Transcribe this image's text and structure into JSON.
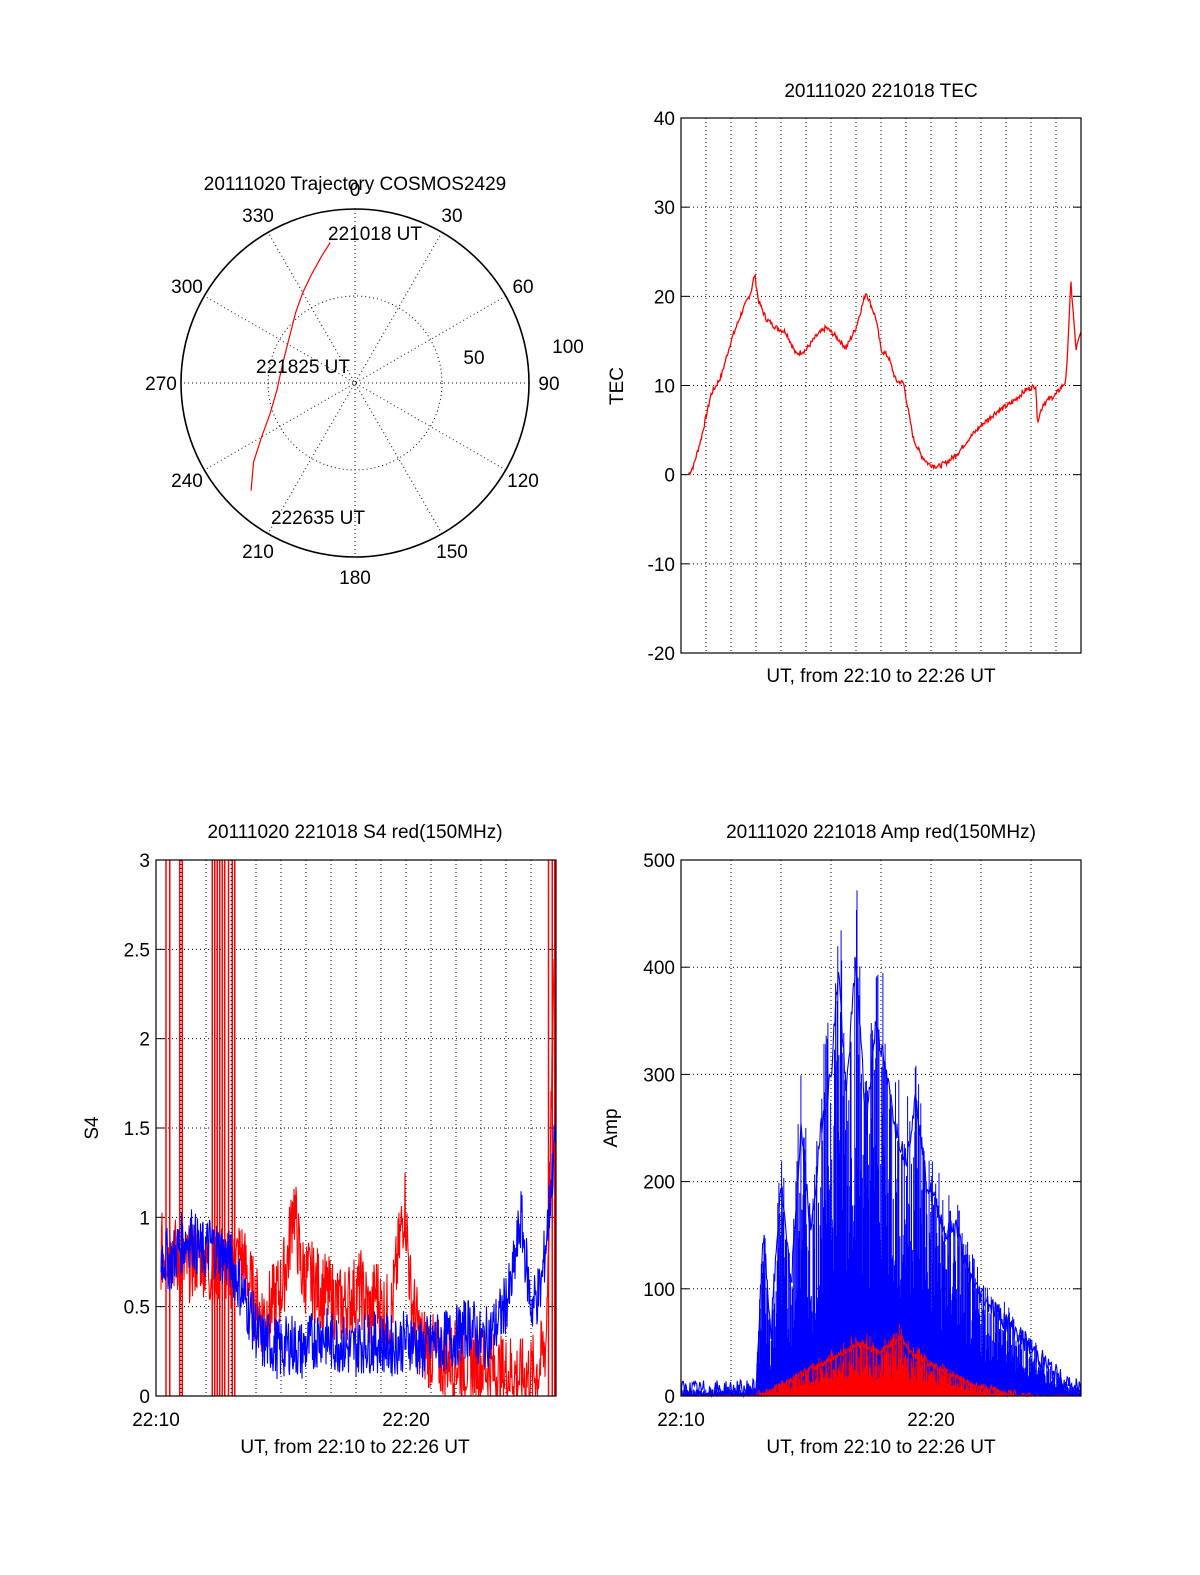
{
  "chart_data": [
    {
      "type": "polar-trajectory",
      "title": "20111020 Trajectory COSMOS2429",
      "angle_labels": [
        "0",
        "30",
        "60",
        "90",
        "120",
        "150",
        "180",
        "210",
        "240",
        "270",
        "300",
        "330"
      ],
      "radius_labels": [
        "50",
        "100"
      ],
      "radius_label_values": [
        50,
        100
      ],
      "radius_max": 100,
      "series": [
        {
          "color": "#ff0000",
          "azimuth_deg": [
            350,
            345,
            338,
            330,
            320,
            305,
            285,
            265,
            250,
            240,
            232,
            224
          ],
          "radius": [
            82,
            75,
            67,
            60,
            53,
            46,
            43,
            45,
            52,
            62,
            74,
            86
          ]
        }
      ],
      "annotations": [
        {
          "text": "221018 UT",
          "azimuth_deg": 359,
          "radius": 86
        },
        {
          "text": "221825 UT",
          "azimuth_deg": 280,
          "radius": 0
        },
        {
          "text": "222635 UT",
          "azimuth_deg": 206,
          "radius": 85
        }
      ]
    },
    {
      "type": "line",
      "title": "20111020 221018 TEC",
      "xlabel": "UT, from 22:10 to 22:26 UT",
      "ylabel": "TEC",
      "xlim": [
        0,
        16
      ],
      "ylim": [
        -20,
        40
      ],
      "yticks": [
        -20,
        -10,
        0,
        10,
        20,
        30,
        40
      ],
      "xtick_labels": [],
      "grid": true,
      "series": [
        {
          "color": "#ff0000",
          "x": [
            0.3,
            0.5,
            0.8,
            1.2,
            1.6,
            2.0,
            2.4,
            2.8,
            2.95,
            3.1,
            3.4,
            3.8,
            4.2,
            4.6,
            5.0,
            5.4,
            5.8,
            6.2,
            6.6,
            7.0,
            7.4,
            7.8,
            8.0,
            8.3,
            8.6,
            8.9,
            9.1,
            9.3,
            9.6,
            9.9,
            10.3,
            10.7,
            11.1,
            11.5,
            12.0,
            12.6,
            13.2,
            13.8,
            14.2,
            14.25,
            14.5,
            15.0,
            15.4,
            15.6,
            15.8,
            16.0
          ],
          "y": [
            0,
            1,
            4,
            9,
            11,
            15,
            18,
            20.5,
            22.5,
            19.5,
            17.5,
            16.5,
            16,
            13.5,
            14,
            15.5,
            16.5,
            15.5,
            14.2,
            16.5,
            20.5,
            17.5,
            14,
            13.2,
            10.5,
            10.3,
            7,
            4,
            2.2,
            1.2,
            0.9,
            1.5,
            2.5,
            4,
            5.5,
            7,
            8,
            9.5,
            10,
            6,
            8,
            9,
            10.5,
            21.5,
            14,
            16
          ]
        }
      ]
    },
    {
      "type": "line",
      "title": "20111020 221018 S4 red(150MHz)",
      "xlabel": "UT, from 22:10 to 22:26 UT",
      "ylabel": "S4",
      "xlim": [
        0,
        16
      ],
      "ylim": [
        0,
        3
      ],
      "yticks": [
        0,
        0.5,
        1,
        1.5,
        2,
        2.5,
        3
      ],
      "ytick_labels": [
        "0",
        "0.5",
        "1",
        "1.5",
        "2",
        "2.5",
        "3"
      ],
      "xtick_labels": [
        "22:10",
        "22:20"
      ],
      "xtick_values": [
        0,
        10
      ],
      "grid": true,
      "series": [
        {
          "color": "#ff0000",
          "x": [
            0.2,
            0.6,
            1.0,
            1.4,
            1.8,
            2.2,
            2.6,
            3.0,
            3.4,
            3.8,
            4.2,
            4.6,
            5.0,
            5.3,
            5.5,
            5.8,
            6.2,
            6.6,
            7.0,
            7.4,
            7.8,
            8.2,
            8.6,
            8.8,
            9.0,
            9.4,
            9.7,
            9.95,
            10.2,
            10.6,
            11.0,
            11.4,
            11.8,
            12.2,
            12.6,
            13.0,
            13.4,
            13.8,
            14.2,
            14.6,
            15.0,
            15.3,
            15.6,
            15.8,
            16.0
          ],
          "y": [
            0.8,
            0.85,
            0.7,
            0.75,
            0.8,
            0.7,
            0.75,
            0.7,
            0.8,
            0.6,
            0.45,
            0.5,
            0.6,
            0.8,
            1.1,
            0.7,
            0.65,
            0.6,
            0.55,
            0.5,
            0.55,
            0.6,
            0.45,
            0.6,
            0.5,
            0.45,
            0.8,
            1.1,
            0.55,
            0.3,
            0.25,
            0.2,
            0.22,
            0.18,
            0.2,
            0.18,
            0.15,
            0.12,
            0.14,
            0.1,
            0.12,
            0.15,
            0.3,
            1.5,
            2.8
          ]
        },
        {
          "color": "#0000ff",
          "x": [
            0.2,
            0.6,
            1.0,
            1.4,
            1.8,
            2.2,
            2.6,
            3.0,
            3.4,
            3.8,
            4.2,
            4.6,
            5.0,
            5.4,
            5.8,
            6.2,
            6.6,
            7.0,
            7.4,
            7.8,
            8.2,
            8.6,
            9.0,
            9.4,
            9.8,
            10.2,
            10.6,
            11.0,
            11.4,
            11.8,
            12.2,
            12.6,
            13.0,
            13.4,
            13.8,
            14.2,
            14.6,
            15.0,
            15.4,
            15.7,
            16.0
          ],
          "y": [
            0.8,
            0.75,
            0.85,
            0.9,
            0.8,
            0.85,
            0.8,
            0.75,
            0.6,
            0.45,
            0.3,
            0.3,
            0.25,
            0.3,
            0.25,
            0.3,
            0.35,
            0.3,
            0.3,
            0.25,
            0.3,
            0.3,
            0.3,
            0.28,
            0.3,
            0.32,
            0.25,
            0.3,
            0.3,
            0.32,
            0.35,
            0.4,
            0.3,
            0.35,
            0.45,
            0.6,
            1.0,
            0.5,
            0.6,
            1.0,
            1.5
          ]
        }
      ]
    },
    {
      "type": "line",
      "title": "20111020 221018 Amp red(150MHz)",
      "xlabel": "UT, from 22:10 to 22:26 UT",
      "ylabel": "Amp",
      "xlim": [
        0,
        16
      ],
      "ylim": [
        0,
        500
      ],
      "yticks": [
        0,
        100,
        200,
        300,
        400,
        500
      ],
      "xtick_labels": [
        "22:10",
        "22:20"
      ],
      "xtick_values": [
        0,
        10
      ],
      "grid": true,
      "series": [
        {
          "color": "#0000ff",
          "x": [
            0,
            1,
            2,
            2.5,
            3.0,
            3.3,
            3.6,
            4.0,
            4.4,
            4.8,
            5.2,
            5.6,
            6.0,
            6.3,
            6.6,
            7.0,
            7.4,
            7.8,
            8.2,
            8.6,
            9.0,
            9.4,
            9.8,
            10.2,
            10.6,
            11.0,
            11.4,
            11.8,
            12.2,
            12.6,
            13.0,
            13.4,
            13.8,
            14.2,
            14.6,
            15.0,
            15.4,
            16.0
          ],
          "y": [
            5,
            5,
            5,
            5,
            8,
            150,
            60,
            200,
            100,
            250,
            150,
            250,
            300,
            400,
            280,
            410,
            250,
            350,
            300,
            250,
            220,
            280,
            200,
            180,
            150,
            160,
            120,
            100,
            90,
            80,
            70,
            60,
            50,
            40,
            30,
            20,
            10,
            5
          ]
        },
        {
          "color": "#ff0000",
          "x": [
            0,
            2,
            3.0,
            3.6,
            4.0,
            4.4,
            4.8,
            5.2,
            5.6,
            6.0,
            6.4,
            6.8,
            7.2,
            7.6,
            8.0,
            8.4,
            8.8,
            9.2,
            9.6,
            10.0,
            10.4,
            10.8,
            11.2,
            11.6,
            12.0,
            12.4,
            12.8,
            13.2,
            13.6,
            14.0,
            16.0
          ],
          "y": [
            0,
            0,
            0,
            5,
            10,
            15,
            20,
            25,
            30,
            35,
            40,
            45,
            50,
            45,
            40,
            50,
            55,
            40,
            35,
            30,
            25,
            20,
            15,
            10,
            8,
            6,
            4,
            2,
            1,
            0,
            0
          ]
        }
      ]
    }
  ]
}
